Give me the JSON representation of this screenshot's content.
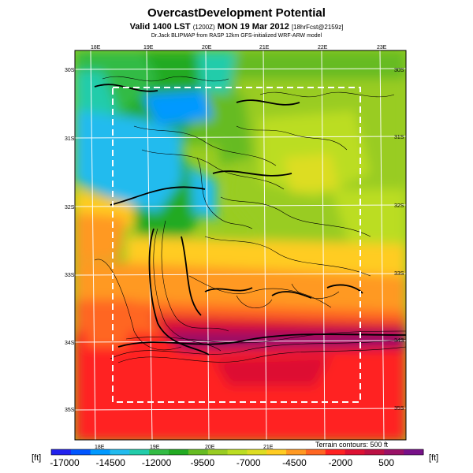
{
  "header": {
    "title": "OvercastDevelopment Potential",
    "valid_prefix": "Valid 1400 LST",
    "valid_utc": "(1200Z)",
    "valid_date": "MON 19 Mar 2012",
    "forecast": "[18hrFcst@2159z]",
    "credit_main": "Dr.Jack BLIPMAP from RASP 12km GFS-initialized WRF-ARW model"
  },
  "axes": {
    "lon_top": [
      "18E",
      "19E",
      "20E",
      "21E",
      "22E",
      "23E"
    ],
    "lon_bottom": [
      "18E",
      "19E",
      "20E",
      "21E"
    ],
    "lat_left": [
      "30S",
      "31S",
      "32S",
      "33S",
      "34S",
      "35S"
    ],
    "lat_right": [
      "30S",
      "31S",
      "32S",
      "33S",
      "34S",
      "35S"
    ]
  },
  "legend": {
    "unit_left": "[ft]",
    "unit_right": "[ft]",
    "terrain_note": "Terrain contours: 500 ft",
    "ticks": [
      "-17000",
      "-14500",
      "-12000",
      "-9500",
      "-7000",
      "-4500",
      "-2000",
      "500"
    ],
    "colors": [
      "#2222ee",
      "#0055ff",
      "#0099ff",
      "#22bbee",
      "#22ccaa",
      "#33bb44",
      "#22aa22",
      "#66bb22",
      "#99cc22",
      "#bbdd22",
      "#dddd22",
      "#ffcc22",
      "#ff9922",
      "#ff6622",
      "#ff2222",
      "#dd1133",
      "#bb1144",
      "#991166",
      "#771188"
    ]
  }
}
